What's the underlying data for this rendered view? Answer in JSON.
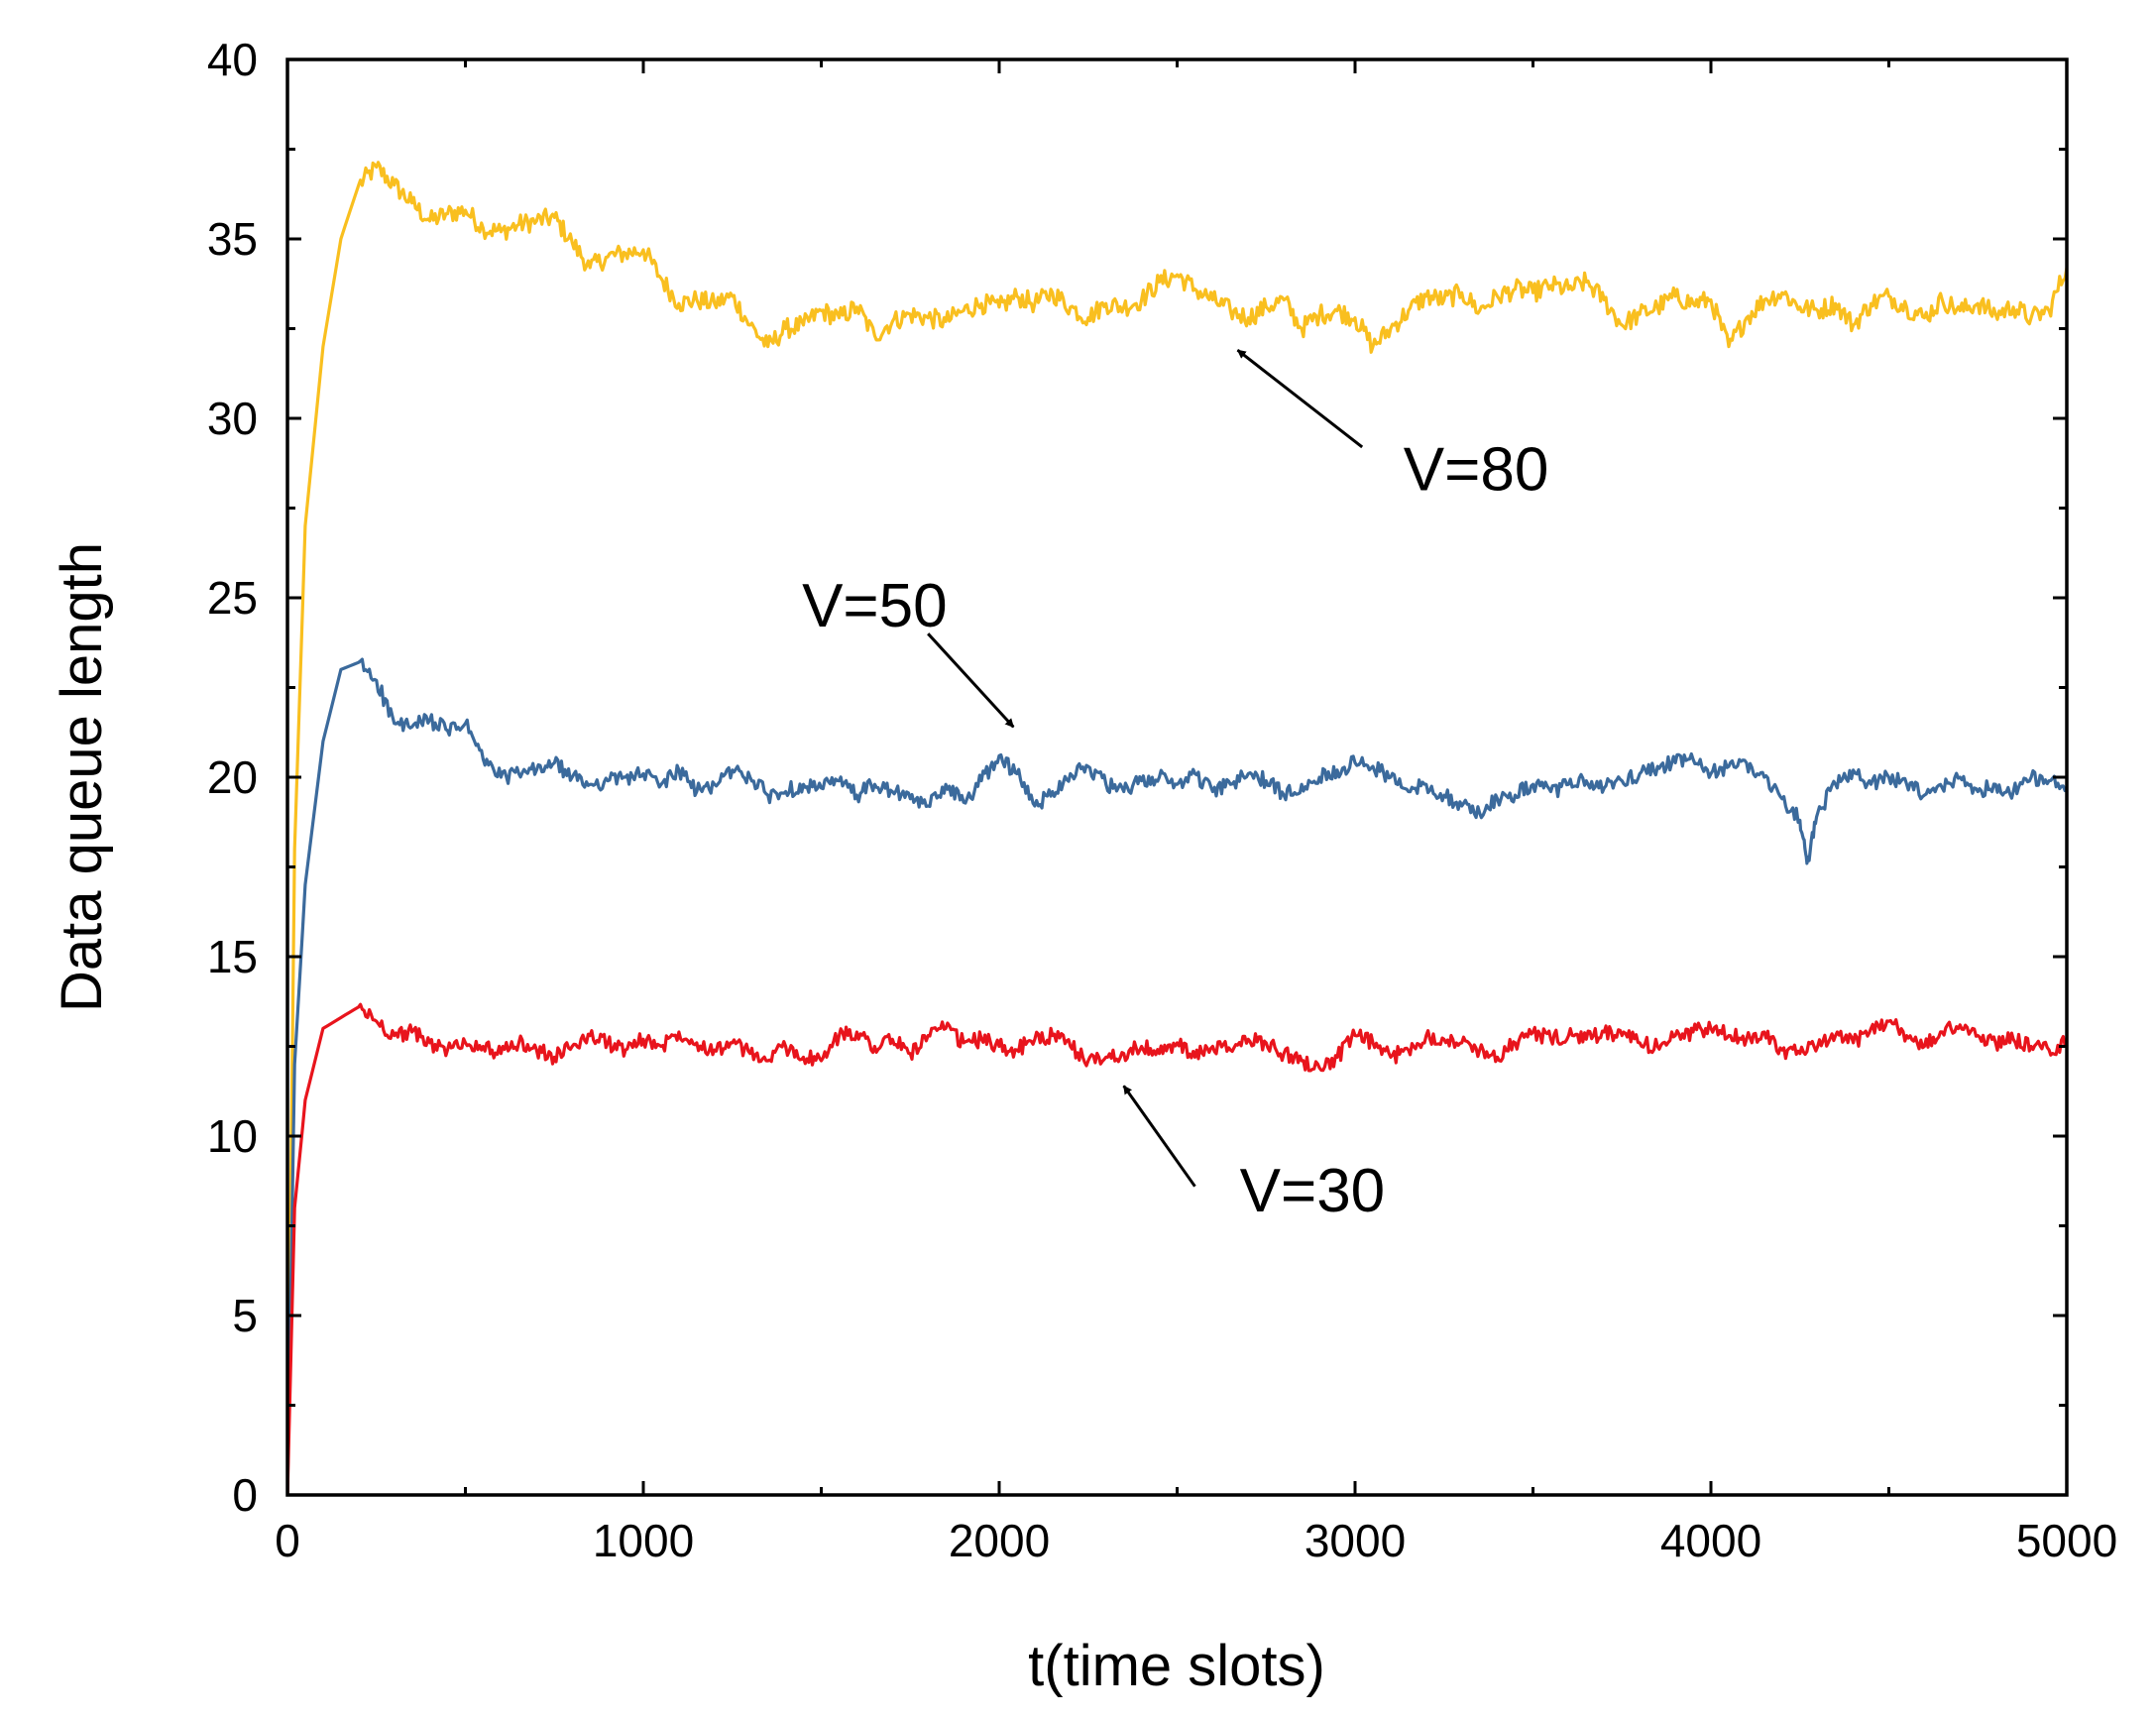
{
  "chart_data": {
    "type": "line",
    "title": "",
    "xlabel": "t(time slots)",
    "ylabel": "Data queue length",
    "xlim": [
      0,
      5000
    ],
    "ylim": [
      0,
      40
    ],
    "xticks": [
      0,
      1000,
      2000,
      3000,
      4000,
      5000
    ],
    "xtick_labels": [
      "0",
      "1000",
      "2000",
      "3000",
      "4000",
      "5000"
    ],
    "yticks": [
      0,
      5,
      10,
      15,
      20,
      25,
      30,
      35,
      40
    ],
    "ytick_labels": [
      "0",
      "5",
      "10",
      "15",
      "20",
      "25",
      "30",
      "35",
      "40"
    ],
    "grid": false,
    "series": [
      {
        "name": "V=80",
        "color": "#f9bf1f",
        "x": [
          0,
          20,
          50,
          100,
          150,
          200,
          250,
          300,
          350,
          400,
          450,
          500,
          550,
          600,
          650,
          700,
          750,
          800,
          850,
          900,
          950,
          1000,
          1050,
          1100,
          1150,
          1200,
          1250,
          1300,
          1350,
          1400,
          1450,
          1500,
          1550,
          1600,
          1650,
          1700,
          1750,
          1800,
          1850,
          1900,
          1950,
          2000,
          2050,
          2100,
          2150,
          2200,
          2250,
          2300,
          2350,
          2400,
          2450,
          2500,
          2550,
          2600,
          2650,
          2700,
          2750,
          2800,
          2850,
          2900,
          2950,
          3000,
          3050,
          3100,
          3150,
          3200,
          3250,
          3300,
          3350,
          3400,
          3450,
          3500,
          3550,
          3600,
          3650,
          3700,
          3750,
          3800,
          3850,
          3900,
          3950,
          4000,
          4050,
          4100,
          4150,
          4200,
          4250,
          4300,
          4350,
          4400,
          4450,
          4500,
          4550,
          4600,
          4650,
          4700,
          4750,
          4800,
          4850,
          4900,
          4950,
          5000
        ],
        "values": [
          0,
          18,
          27,
          32,
          35,
          36.5,
          37,
          36.5,
          36,
          35.5,
          35.7,
          35.8,
          35.3,
          35.2,
          35.4,
          35.5,
          35.6,
          34.9,
          34.2,
          34.5,
          34.6,
          34.7,
          33.9,
          33.2,
          33.3,
          33.2,
          33.4,
          32.6,
          32.0,
          32.5,
          32.6,
          33.0,
          32.8,
          33.1,
          32.3,
          32.7,
          32.9,
          32.8,
          32.7,
          33.0,
          33.2,
          33.1,
          33.4,
          33.2,
          33.5,
          33.1,
          32.8,
          33.2,
          33.1,
          33.3,
          33.8,
          34.0,
          33.6,
          33.3,
          33.0,
          32.8,
          33.1,
          33.3,
          32.5,
          32.9,
          33.0,
          32.8,
          32.0,
          32.5,
          33.0,
          33.4,
          33.3,
          33.5,
          33.0,
          33.4,
          33.6,
          33.5,
          33.7,
          33.6,
          33.8,
          33.3,
          32.6,
          32.9,
          33.1,
          33.4,
          33.2,
          33.3,
          32.0,
          32.8,
          33.3,
          33.5,
          33.1,
          33.0,
          33.2,
          32.6,
          33.2,
          33.4,
          33.1,
          32.8,
          33.3,
          33.0,
          33.2,
          32.9,
          33.1,
          32.8,
          33.0,
          34.2
        ]
      },
      {
        "name": "V=50",
        "color": "#3b6a9c",
        "x": [
          0,
          20,
          50,
          100,
          150,
          200,
          250,
          300,
          350,
          400,
          450,
          500,
          550,
          600,
          650,
          700,
          750,
          800,
          850,
          900,
          950,
          1000,
          1050,
          1100,
          1150,
          1200,
          1250,
          1300,
          1350,
          1400,
          1450,
          1500,
          1550,
          1600,
          1650,
          1700,
          1750,
          1800,
          1850,
          1900,
          1950,
          2000,
          2050,
          2100,
          2150,
          2200,
          2250,
          2300,
          2350,
          2400,
          2450,
          2500,
          2550,
          2600,
          2650,
          2700,
          2750,
          2800,
          2850,
          2900,
          2950,
          3000,
          3050,
          3100,
          3150,
          3200,
          3250,
          3300,
          3350,
          3400,
          3450,
          3500,
          3550,
          3600,
          3650,
          3700,
          3750,
          3800,
          3850,
          3900,
          3950,
          4000,
          4050,
          4100,
          4150,
          4200,
          4250,
          4270,
          4300,
          4350,
          4400,
          4450,
          4500,
          4550,
          4600,
          4650,
          4700,
          4750,
          4800,
          4850,
          4900,
          4950,
          5000
        ],
        "values": [
          0,
          12,
          17,
          21,
          23,
          23.2,
          22.7,
          21.5,
          21.4,
          21.6,
          21.3,
          21.5,
          20.5,
          20.0,
          20.1,
          20.2,
          20.4,
          20.0,
          19.8,
          19.9,
          20.0,
          20.1,
          19.8,
          20.2,
          19.6,
          19.8,
          20.2,
          20.0,
          19.5,
          19.6,
          19.8,
          19.7,
          19.9,
          19.5,
          19.8,
          19.6,
          19.4,
          19.2,
          19.8,
          19.3,
          19.9,
          20.6,
          20.1,
          19.2,
          19.6,
          20.1,
          20.3,
          19.8,
          19.6,
          19.9,
          20.0,
          19.8,
          20.1,
          19.6,
          19.8,
          20.1,
          19.9,
          19.5,
          19.8,
          20.0,
          20.2,
          20.4,
          20.3,
          20.0,
          19.6,
          19.8,
          19.5,
          19.2,
          19.0,
          19.4,
          19.5,
          19.8,
          19.6,
          19.8,
          19.9,
          19.7,
          19.9,
          20.1,
          20.3,
          20.4,
          20.5,
          20.1,
          20.3,
          20.4,
          20.0,
          19.4,
          18.8,
          17.6,
          19.0,
          19.8,
          20.2,
          19.8,
          20.0,
          19.8,
          19.5,
          19.7,
          20.0,
          19.6,
          19.8,
          19.6,
          20.0,
          19.9,
          19.7
        ]
      },
      {
        "name": "V=30",
        "color": "#e8141c",
        "x": [
          0,
          20,
          50,
          100,
          150,
          200,
          250,
          300,
          350,
          400,
          450,
          500,
          550,
          600,
          650,
          700,
          750,
          800,
          850,
          900,
          950,
          1000,
          1050,
          1100,
          1150,
          1200,
          1250,
          1300,
          1350,
          1400,
          1450,
          1500,
          1550,
          1600,
          1650,
          1700,
          1750,
          1800,
          1850,
          1900,
          1950,
          2000,
          2050,
          2100,
          2150,
          2200,
          2250,
          2300,
          2350,
          2400,
          2450,
          2500,
          2550,
          2600,
          2650,
          2700,
          2750,
          2800,
          2850,
          2900,
          2950,
          3000,
          3050,
          3100,
          3150,
          3200,
          3250,
          3300,
          3350,
          3400,
          3450,
          3500,
          3550,
          3600,
          3650,
          3700,
          3750,
          3800,
          3850,
          3900,
          3950,
          4000,
          4050,
          4100,
          4150,
          4200,
          4250,
          4300,
          4350,
          4400,
          4450,
          4500,
          4550,
          4600,
          4650,
          4700,
          4750,
          4800,
          4850,
          4900,
          4950,
          5000
        ],
        "values": [
          0,
          8,
          11,
          13,
          13.3,
          13.6,
          13.2,
          12.8,
          12.9,
          12.6,
          12.4,
          12.6,
          12.5,
          12.3,
          12.6,
          12.4,
          12.2,
          12.5,
          12.8,
          12.6,
          12.4,
          12.7,
          12.5,
          12.9,
          12.6,
          12.4,
          12.6,
          12.3,
          12.1,
          12.5,
          12.2,
          12.1,
          12.8,
          12.9,
          12.5,
          12.7,
          12.3,
          12.8,
          13.0,
          12.6,
          12.7,
          12.5,
          12.4,
          12.7,
          12.8,
          12.5,
          12.1,
          12.2,
          12.3,
          12.5,
          12.3,
          12.6,
          12.2,
          12.5,
          12.4,
          12.7,
          12.6,
          12.3,
          12.1,
          11.9,
          12.2,
          12.8,
          12.6,
          12.2,
          12.4,
          12.8,
          12.7,
          12.6,
          12.4,
          12.2,
          12.6,
          12.9,
          12.7,
          12.8,
          12.7,
          12.9,
          12.8,
          12.6,
          12.5,
          12.8,
          12.9,
          13.0,
          12.8,
          12.7,
          12.9,
          12.4,
          12.3,
          12.5,
          12.8,
          12.6,
          13.0,
          13.2,
          12.8,
          12.5,
          12.9,
          13.1,
          12.8,
          12.6,
          12.7,
          12.5,
          12.4,
          12.6
        ]
      }
    ],
    "annotations": [
      {
        "text": "V=80",
        "x": 3340,
        "y": 28.0,
        "arrow_from": [
          3020,
          29.2
        ],
        "arrow_to": [
          2670,
          31.9
        ]
      },
      {
        "text": "V=50",
        "x": 1650,
        "y": 24.2,
        "arrow_from": [
          1800,
          24.0
        ],
        "arrow_to": [
          2040,
          21.4
        ]
      },
      {
        "text": "V=30",
        "x": 2880,
        "y": 7.9,
        "arrow_from": [
          2550,
          8.6
        ],
        "arrow_to": [
          2350,
          11.4
        ]
      }
    ]
  }
}
